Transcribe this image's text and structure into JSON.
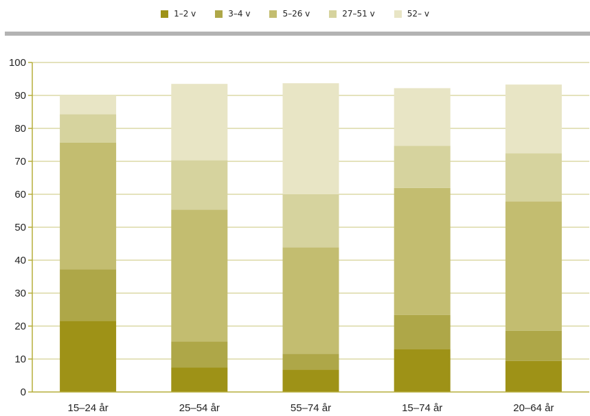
{
  "chart_data": {
    "type": "bar",
    "stacked": true,
    "categories": [
      "15–24 år",
      "25–54 år",
      "55–74 år",
      "15–74 år",
      "20–64 år"
    ],
    "series": [
      {
        "name": "1–2 v",
        "color": "#9e9217",
        "values": [
          21.6,
          7.4,
          6.8,
          13.0,
          9.4
        ]
      },
      {
        "name": "3–4 v",
        "color": "#aea748",
        "values": [
          15.6,
          7.9,
          4.8,
          10.4,
          9.2
        ]
      },
      {
        "name": "5–26 v",
        "color": "#c3bd70",
        "values": [
          38.5,
          40.0,
          32.3,
          38.5,
          39.2
        ]
      },
      {
        "name": "27–51 v",
        "color": "#d6d39e",
        "values": [
          8.6,
          15.0,
          16.1,
          12.8,
          14.6
        ]
      },
      {
        "name": "52– v",
        "color": "#e8e5c5",
        "values": [
          5.7,
          23.2,
          33.7,
          17.5,
          20.9
        ]
      }
    ],
    "ylim": [
      0,
      100
    ],
    "yticks": [
      0,
      10,
      20,
      30,
      40,
      50,
      60,
      70,
      80,
      90,
      100
    ],
    "grid": true,
    "legend_position": "top",
    "title": "",
    "xlabel": "",
    "ylabel": "",
    "axis_color": "#b5ad3a",
    "grid_color": "#c9c47a"
  }
}
